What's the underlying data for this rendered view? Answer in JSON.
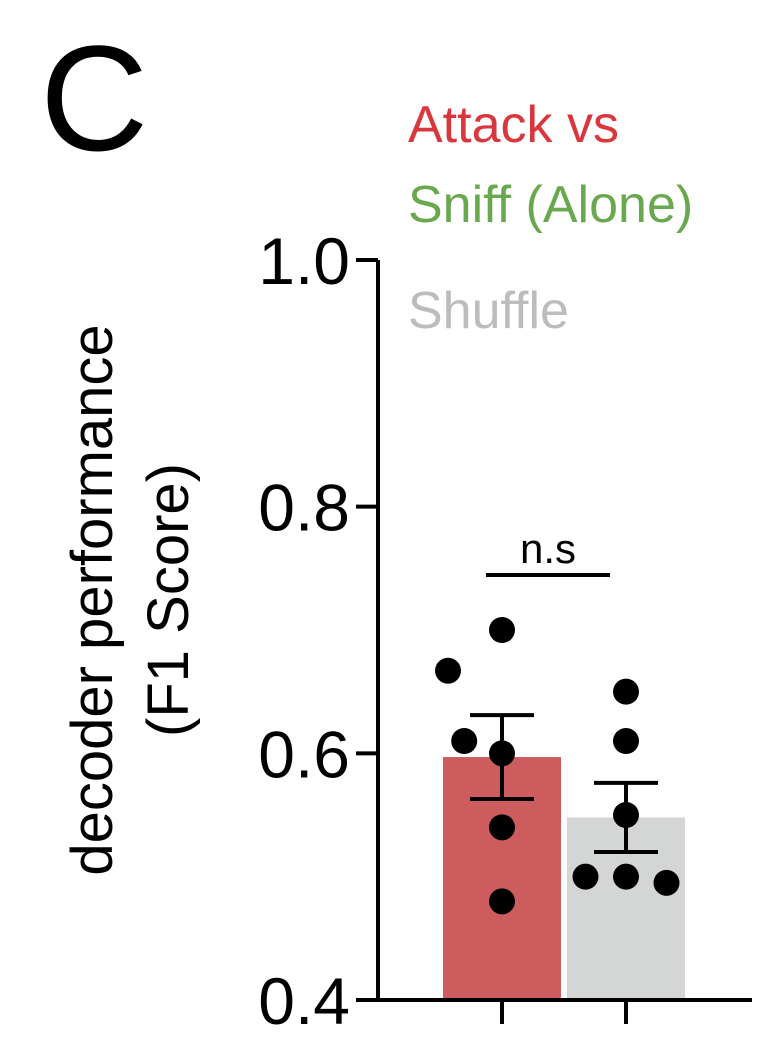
{
  "panel_letter": "C",
  "chart_data": {
    "type": "bar",
    "title": "",
    "ylabel": "decoder performance",
    "ylabel_line2": "(F1 Score)",
    "ylim": [
      0.4,
      1.0
    ],
    "yticks": [
      0.4,
      0.6,
      0.8,
      1.0
    ],
    "ytick_labels": [
      "0.4",
      "0.6",
      "0.8",
      "1.0"
    ],
    "legend": [
      {
        "label": "Attack vs",
        "color": "#d9363e"
      },
      {
        "label": "Sniff (Alone)",
        "color": "#6aa84f"
      },
      {
        "label": "Shuffle",
        "color": "#bcbcbc"
      }
    ],
    "bars": [
      {
        "name": "Attack vs Sniff (Alone)",
        "value": 0.597,
        "sem": 0.034,
        "color": "#cd5c5e",
        "points": [
          0.7,
          0.667,
          0.61,
          0.6,
          0.54,
          0.48
        ]
      },
      {
        "name": "Shuffle",
        "value": 0.548,
        "sem": 0.028,
        "color": "#d4d6d6",
        "points": [
          0.65,
          0.61,
          0.55,
          0.5,
          0.5,
          0.495
        ]
      }
    ],
    "significance": {
      "label": "n.s",
      "between": [
        0,
        1
      ]
    }
  }
}
